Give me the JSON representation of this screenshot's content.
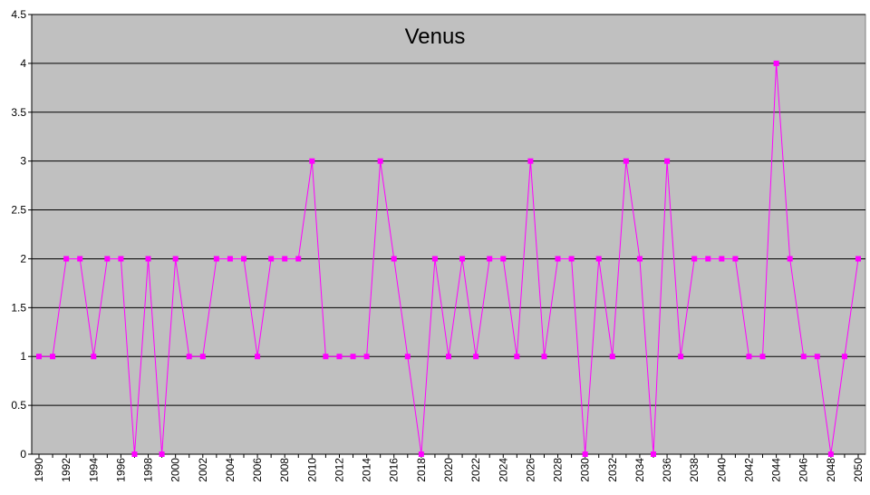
{
  "chart_data": {
    "type": "line",
    "title": "Venus",
    "xlabel": "",
    "ylabel": "",
    "ylim": [
      0,
      4.5
    ],
    "yticks": [
      "0",
      "0.5",
      "1",
      "1.5",
      "2",
      "2.5",
      "3",
      "3.5",
      "4",
      "4.5"
    ],
    "grid": true,
    "legend": "none",
    "colors": {
      "plot_background": "#C0C0C0",
      "series": "#FF00FF",
      "gridline": "#000000"
    },
    "x": [
      1990,
      1991,
      1992,
      1993,
      1994,
      1995,
      1996,
      1997,
      1998,
      1999,
      2000,
      2001,
      2002,
      2003,
      2004,
      2005,
      2006,
      2007,
      2008,
      2009,
      2010,
      2011,
      2012,
      2013,
      2014,
      2015,
      2016,
      2017,
      2018,
      2019,
      2020,
      2021,
      2022,
      2023,
      2024,
      2025,
      2026,
      2027,
      2028,
      2029,
      2030,
      2031,
      2032,
      2033,
      2034,
      2035,
      2036,
      2037,
      2038,
      2039,
      2040,
      2041,
      2042,
      2043,
      2044,
      2045,
      2046,
      2047,
      2048,
      2049,
      2050
    ],
    "xtick_labels": [
      "1990",
      "1992",
      "1994",
      "1996",
      "1998",
      "2000",
      "2002",
      "2004",
      "2006",
      "2008",
      "2010",
      "2012",
      "2014",
      "2016",
      "2018",
      "2020",
      "2022",
      "2024",
      "2026",
      "2028",
      "2030",
      "2032",
      "2034",
      "2036",
      "2038",
      "2040",
      "2042",
      "2044",
      "2046",
      "2048",
      "2050"
    ],
    "series": [
      {
        "values": [
          1,
          1,
          2,
          2,
          1,
          2,
          2,
          0,
          2,
          0,
          2,
          1,
          1,
          2,
          2,
          2,
          1,
          2,
          2,
          2,
          3,
          1,
          1,
          1,
          1,
          3,
          2,
          1,
          0,
          2,
          1,
          2,
          1,
          2,
          2,
          1,
          3,
          1,
          2,
          2,
          0,
          2,
          1,
          3,
          2,
          0,
          3,
          1,
          2,
          2,
          2,
          2,
          1,
          1,
          4,
          2,
          1,
          1,
          0,
          1,
          2
        ]
      }
    ]
  }
}
